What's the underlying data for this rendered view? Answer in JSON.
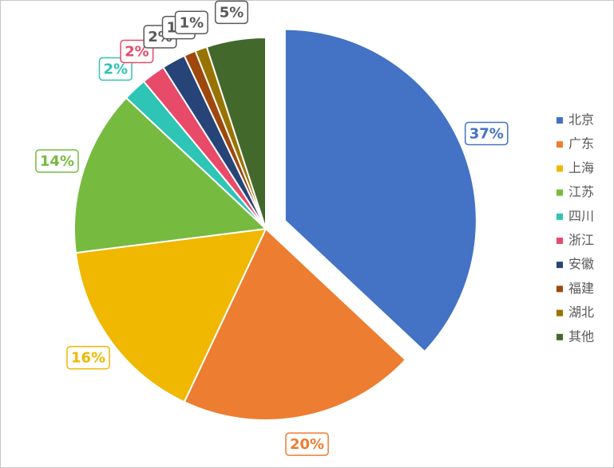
{
  "chart_data": {
    "type": "pie",
    "categories": [
      "北京",
      "广东",
      "上海",
      "江苏",
      "四川",
      "浙江",
      "安徽",
      "福建",
      "湖北",
      "其他"
    ],
    "values": [
      37,
      20,
      16,
      14,
      2,
      2,
      2,
      1,
      1,
      5
    ],
    "value_labels": [
      "37%",
      "20%",
      "16%",
      "14%",
      "2%",
      "2%",
      "2%",
      "1%",
      "1%",
      "5%"
    ],
    "colors": [
      "#4472c4",
      "#ed7d31",
      "#f0b800",
      "#76bb40",
      "#2ec4b6",
      "#e84a6a",
      "#264478",
      "#9e480e",
      "#997300",
      "#43682b"
    ],
    "label_colors": [
      "#4472c4",
      "#ed7d31",
      "#f0b800",
      "#76bb40",
      "#2ec4b6",
      "#e84a6a",
      "#595959",
      "#595959",
      "#595959",
      "#595959"
    ],
    "exploded": [
      0
    ],
    "legend": "right"
  }
}
